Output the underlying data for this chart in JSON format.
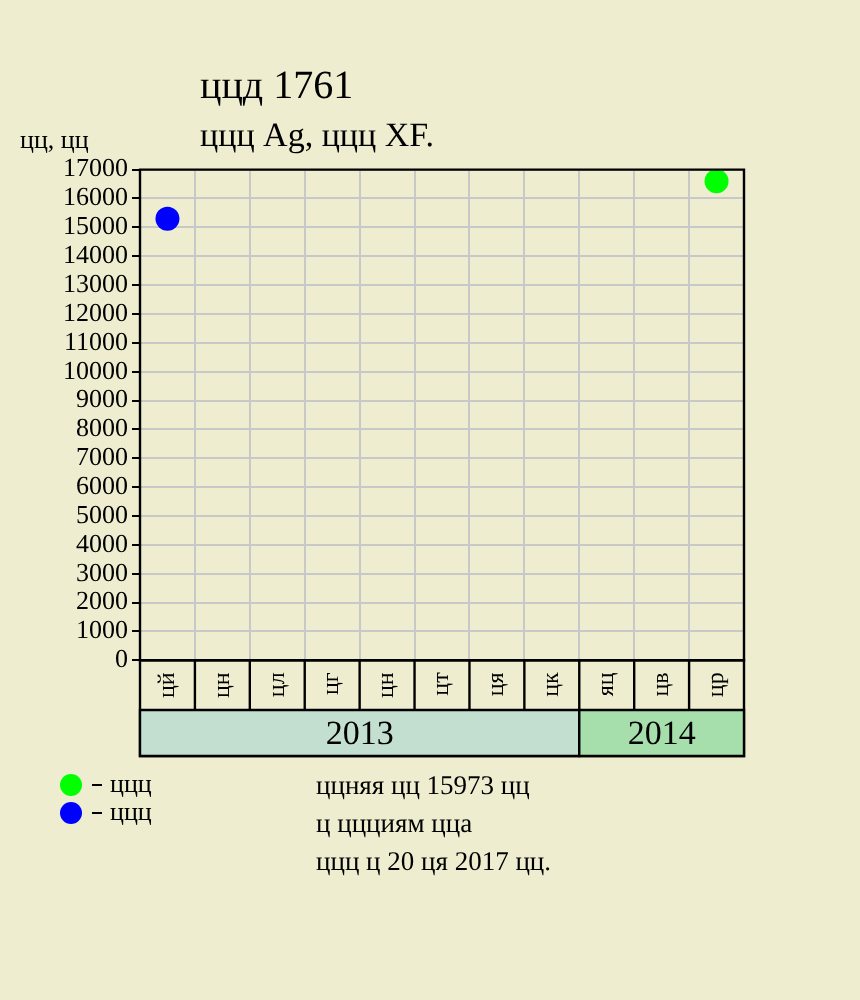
{
  "chart_data": {
    "type": "scatter",
    "title": "ццд 1761",
    "subtitle": "ццц Ag, ццц XF.",
    "ylabel": "цц, цц",
    "categories": [
      "цй",
      "цн",
      "цл",
      "цг",
      "цн",
      "цт",
      "ця",
      "цк",
      "яц",
      "цв",
      "цр"
    ],
    "series": [
      {
        "name": "ццц",
        "color": "#00ff00",
        "values": [
          null,
          null,
          null,
          null,
          null,
          null,
          null,
          null,
          null,
          null,
          16600
        ]
      },
      {
        "name": "ццц",
        "color": "#0000ff",
        "values": [
          15300,
          null,
          null,
          null,
          null,
          null,
          null,
          null,
          null,
          null,
          null
        ]
      }
    ],
    "ylim": [
      0,
      17000
    ],
    "yticks": [
      0,
      1000,
      2000,
      3000,
      4000,
      5000,
      6000,
      7000,
      8000,
      9000,
      10000,
      11000,
      12000,
      13000,
      14000,
      15000,
      16000,
      17000
    ],
    "grid": true,
    "legend": "bottom left",
    "marker": "circle",
    "annotations": [
      "2013",
      "2014",
      "ццняя цц 15973 цц",
      "ц ццциям цца",
      "ццц ц 20 ця 2017 цц."
    ]
  }
}
